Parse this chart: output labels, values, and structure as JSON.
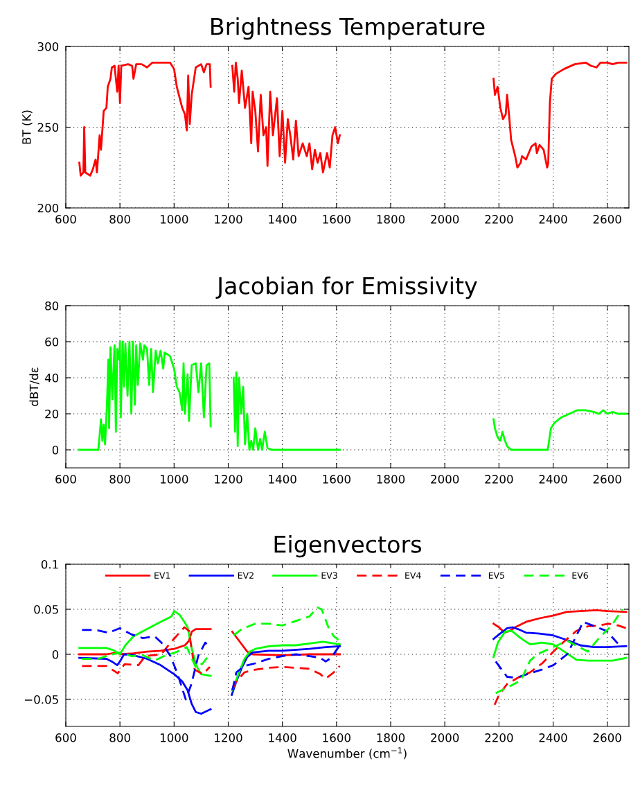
{
  "chart_data": [
    {
      "type": "line",
      "title": "Brightness Temperature",
      "ylabel": "BT (K)",
      "xlim": [
        600,
        2680
      ],
      "xticks": [
        600,
        800,
        1000,
        1200,
        1400,
        1600,
        1800,
        2000,
        2200,
        2400,
        2600
      ],
      "ylim": [
        200,
        300
      ],
      "yticks": [
        200,
        250,
        300
      ],
      "grid": true,
      "line_style": "solid",
      "series": [
        {
          "color": "#ff0000",
          "x": [
            650,
            655,
            665,
            668,
            672,
            690,
            700,
            710,
            715,
            725,
            730,
            740,
            750,
            755,
            765,
            770,
            780,
            790,
            795,
            800,
            805,
            830,
            845,
            850,
            860,
            880,
            900,
            920,
            960,
            985,
            1000,
            1010,
            1030,
            1040,
            1047,
            1052,
            1058,
            1065,
            1080,
            1100,
            1110,
            1120,
            1132,
            1135,
            1175,
            1215,
            1222,
            1228,
            1235,
            1240,
            1250,
            1262,
            1275,
            1285,
            1290,
            1300,
            1310,
            1320,
            1330,
            1340,
            1345,
            1355,
            1365,
            1380,
            1390,
            1400,
            1410,
            1420,
            1430,
            1440,
            1450,
            1460,
            1475,
            1490,
            1500,
            1510,
            1520,
            1530,
            1540,
            1550,
            1565,
            1575,
            1585,
            1595,
            1605,
            1612,
            1900,
            2180,
            2185,
            2195,
            2205,
            2215,
            2225,
            2230,
            2237,
            2245,
            2260,
            2268,
            2280,
            2285,
            2300,
            2320,
            2335,
            2340,
            2350,
            2365,
            2378,
            2382,
            2388,
            2395,
            2410,
            2440,
            2480,
            2520,
            2540,
            2560,
            2575,
            2600,
            2620,
            2640,
            2670
          ],
          "values": [
            228,
            220,
            222,
            250,
            222,
            220,
            224,
            230,
            222,
            245,
            236,
            260,
            262,
            275,
            280,
            287,
            288,
            272,
            288,
            265,
            288,
            289,
            288,
            280,
            289,
            289,
            287,
            290,
            290,
            290,
            286,
            275,
            262,
            258,
            248,
            282,
            252,
            270,
            287,
            289,
            284,
            289,
            289,
            275,
            null,
            288,
            272,
            290,
            280,
            265,
            285,
            262,
            275,
            240,
            272,
            260,
            235,
            270,
            245,
            250,
            226,
            272,
            245,
            268,
            232,
            260,
            228,
            255,
            244,
            230,
            254,
            232,
            240,
            232,
            240,
            224,
            236,
            228,
            234,
            222,
            234,
            225,
            245,
            250,
            240,
            245,
            null,
            280,
            270,
            275,
            262,
            255,
            258,
            270,
            258,
            242,
            232,
            225,
            228,
            232,
            230,
            238,
            240,
            234,
            239,
            236,
            225,
            228,
            265,
            280,
            283,
            286,
            289,
            290,
            288,
            287,
            290,
            290,
            289,
            290,
            290
          ]
        }
      ]
    },
    {
      "type": "line",
      "title": "Jacobian for Emissivity",
      "ylabel": "dBT/dε",
      "xlim": [
        600,
        2680
      ],
      "xticks": [
        600,
        800,
        1000,
        1200,
        1400,
        1600,
        1800,
        2000,
        2200,
        2400,
        2600
      ],
      "ylim": [
        -10,
        80
      ],
      "yticks": [
        0,
        20,
        40,
        60,
        80
      ],
      "grid": true,
      "line_style": "solid",
      "series": [
        {
          "color": "#00ff00",
          "x": [
            650,
            700,
            720,
            725,
            730,
            735,
            740,
            745,
            752,
            757,
            760,
            765,
            772,
            780,
            785,
            790,
            797,
            800,
            803,
            810,
            815,
            820,
            828,
            835,
            842,
            848,
            855,
            860,
            866,
            875,
            885,
            890,
            900,
            908,
            915,
            922,
            932,
            940,
            950,
            960,
            965,
            985,
            1000,
            1010,
            1020,
            1030,
            1035,
            1040,
            1050,
            1055,
            1065,
            1080,
            1090,
            1100,
            1110,
            1120,
            1130,
            1135,
            1175,
            1220,
            1225,
            1230,
            1235,
            1240,
            1248,
            1255,
            1262,
            1270,
            1278,
            1285,
            1292,
            1300,
            1310,
            1318,
            1325,
            1335,
            1345,
            1360,
            1400,
            1500,
            1612,
            1900,
            2180,
            2185,
            2195,
            2205,
            2213,
            2220,
            2230,
            2245,
            2270,
            2300,
            2340,
            2380,
            2385,
            2392,
            2405,
            2430,
            2460,
            2490,
            2520,
            2550,
            2570,
            2585,
            2600,
            2620,
            2640,
            2660,
            2670
          ],
          "values": [
            0,
            0,
            0,
            8,
            17,
            5,
            14,
            3,
            25,
            50,
            12,
            57,
            28,
            58,
            10,
            56,
            50,
            60,
            18,
            60,
            35,
            59,
            30,
            60,
            20,
            60,
            25,
            58,
            36,
            59,
            50,
            58,
            56,
            36,
            56,
            32,
            55,
            48,
            55,
            45,
            54,
            52,
            45,
            35,
            32,
            22,
            48,
            20,
            42,
            16,
            47,
            48,
            32,
            48,
            18,
            47,
            48,
            13,
            null,
            40,
            10,
            43,
            2,
            40,
            20,
            35,
            3,
            20,
            0,
            5,
            0,
            12,
            0,
            6,
            0,
            10,
            1,
            0,
            0,
            0,
            0,
            null,
            17,
            12,
            7,
            5,
            10,
            6,
            2,
            0,
            0,
            0,
            0,
            0,
            5,
            12,
            15,
            18,
            20,
            22,
            22,
            21,
            20,
            22,
            20,
            21,
            20,
            20,
            20
          ]
        }
      ]
    },
    {
      "type": "line",
      "title": "Eigenvectors",
      "xlabel": "Wavenumber (cm$^{−1}$)",
      "xlim": [
        600,
        2680
      ],
      "xticks": [
        600,
        800,
        1000,
        1200,
        1400,
        1600,
        1800,
        2000,
        2200,
        2400,
        2600
      ],
      "ylim": [
        -0.08,
        0.1
      ],
      "yticks": [
        {
          "value": -0.05,
          "label": "−0.05"
        },
        0,
        0.05,
        0.1
      ],
      "grid": true,
      "legend": "top",
      "series": [
        {
          "name": "EV1",
          "color": "#ff0000",
          "line_style": "solid",
          "x": [
            650,
            750,
            790,
            800,
            850,
            900,
            950,
            1000,
            1040,
            1055,
            1065,
            1080,
            1135,
            1175,
            1215,
            1240,
            1270,
            1290,
            1400,
            1500,
            1612,
            1900,
            2180,
            2200,
            2220,
            2240,
            2260,
            2300,
            2350,
            2400,
            2450,
            2500,
            2560,
            2600,
            2670
          ],
          "values": [
            0,
            0,
            0.002,
            0,
            0.001,
            0.003,
            0.004,
            0.006,
            0.01,
            0.015,
            0.025,
            0.028,
            0.028,
            null,
            0.025,
            0.015,
            0.003,
            0,
            -0.001,
            0,
            0,
            null,
            0.034,
            0.03,
            0.024,
            0.026,
            0.03,
            0.036,
            0.04,
            0.043,
            0.047,
            0.048,
            0.049,
            0.048,
            0.047
          ]
        },
        {
          "name": "EV2",
          "color": "#0000ff",
          "line_style": "solid",
          "x": [
            650,
            750,
            770,
            790,
            800,
            815,
            850,
            900,
            950,
            1000,
            1030,
            1050,
            1065,
            1080,
            1100,
            1120,
            1135,
            1175,
            1213,
            1230,
            1250,
            1270,
            1290,
            1350,
            1400,
            1500,
            1560,
            1612,
            1900,
            2180,
            2200,
            2230,
            2250,
            2270,
            2300,
            2350,
            2400,
            2450,
            2500,
            2550,
            2600,
            2670
          ],
          "values": [
            -0.004,
            -0.005,
            -0.008,
            -0.012,
            -0.008,
            0,
            -0.001,
            -0.005,
            -0.012,
            -0.022,
            -0.03,
            -0.04,
            -0.055,
            -0.064,
            -0.066,
            -0.063,
            -0.061,
            null,
            -0.045,
            -0.03,
            -0.015,
            -0.003,
            0.002,
            0.004,
            0.004,
            0.006,
            0.008,
            0.009,
            null,
            0.017,
            0.022,
            0.029,
            0.03,
            0.028,
            0.024,
            0.023,
            0.021,
            0.016,
            0.01,
            0.008,
            0.008,
            0.009
          ]
        },
        {
          "name": "EV3",
          "color": "#00ff00",
          "line_style": "solid",
          "x": [
            650,
            750,
            780,
            800,
            820,
            850,
            900,
            950,
            990,
            1000,
            1020,
            1040,
            1050,
            1064,
            1081,
            1100,
            1135,
            1175,
            1215,
            1240,
            1260,
            1280,
            1300,
            1350,
            1400,
            1450,
            1500,
            1550,
            1612,
            1900,
            2180,
            2196,
            2222,
            2247,
            2280,
            2315,
            2358,
            2400,
            2426,
            2486,
            2530,
            2572,
            2620,
            2670
          ],
          "values": [
            0.007,
            0.007,
            0.004,
            0,
            0.01,
            0.02,
            0.028,
            0.036,
            0.042,
            0.048,
            0.044,
            0.035,
            0.03,
            0.008,
            -0.012,
            -0.022,
            -0.024,
            null,
            -0.04,
            -0.02,
            -0.005,
            0.003,
            0.006,
            0.009,
            0.01,
            0.01,
            0.012,
            0.014,
            0.011,
            null,
            -0.003,
            0.013,
            0.025,
            0.026,
            0.018,
            0.011,
            0.013,
            0.011,
            0.006,
            -0.006,
            -0.007,
            -0.007,
            -0.007,
            -0.004
          ]
        },
        {
          "name": "EV4",
          "color": "#ff0000",
          "line_style": "dashed",
          "x": [
            660,
            750,
            792,
            817,
            868,
            894,
            953,
            987,
            1038,
            1055,
            1076,
            1106,
            1132,
            1175,
            1215,
            1230,
            1260,
            1300,
            1350,
            1400,
            1450,
            1500,
            1540,
            1560,
            1590,
            1612,
            1900,
            2184,
            2200,
            2230,
            2270,
            2315,
            2360,
            2401,
            2440,
            2486,
            2528,
            2570,
            2605,
            2640,
            2670
          ],
          "values": [
            -0.013,
            -0.013,
            -0.021,
            -0.011,
            -0.012,
            -0.002,
            0,
            0.013,
            0.03,
            0.026,
            -0.017,
            -0.022,
            -0.014,
            null,
            -0.039,
            -0.03,
            -0.02,
            -0.017,
            -0.015,
            -0.014,
            -0.015,
            -0.016,
            -0.022,
            -0.027,
            -0.02,
            -0.013,
            null,
            -0.056,
            -0.045,
            -0.033,
            -0.026,
            -0.02,
            -0.01,
            0.003,
            0.014,
            0.026,
            0.031,
            0.032,
            0.034,
            0.032,
            0.029
          ]
        },
        {
          "name": "EV5",
          "color": "#0000ff",
          "line_style": "dashed",
          "x": [
            660,
            710,
            758,
            800,
            843,
            885,
            928,
            953,
            987,
            1013,
            1043,
            1064,
            1089,
            1115,
            1132,
            1175,
            1215,
            1230,
            1260,
            1300,
            1350,
            1400,
            1450,
            1500,
            1540,
            1560,
            1580,
            1612,
            1900,
            2188,
            2230,
            2264,
            2315,
            2358,
            2401,
            2452,
            2511,
            2537,
            2597,
            2639
          ],
          "values": [
            0.027,
            0.027,
            0.024,
            0.029,
            0.022,
            0.018,
            0.02,
            0.013,
            -0.002,
            -0.022,
            -0.05,
            -0.033,
            -0.002,
            0.013,
            0.008,
            null,
            -0.04,
            -0.02,
            -0.013,
            -0.01,
            -0.005,
            -0.002,
            0,
            -0.002,
            -0.004,
            -0.008,
            -0.004,
            0.01,
            null,
            -0.008,
            -0.025,
            -0.026,
            -0.021,
            -0.017,
            -0.012,
            0,
            0.036,
            0.033,
            0.026,
            0.012
          ]
        },
        {
          "name": "EV6",
          "color": "#00ff00",
          "line_style": "dashed",
          "x": [
            660,
            720,
            758,
            800,
            843,
            885,
            928,
            970,
            1004,
            1047,
            1081,
            1106,
            1132,
            1175,
            1220,
            1250,
            1300,
            1350,
            1400,
            1450,
            1500,
            1530,
            1545,
            1570,
            1590,
            1612,
            1900,
            2188,
            2230,
            2281,
            2315,
            2341,
            2401,
            2452,
            2528,
            2572,
            2614,
            2656
          ],
          "values": [
            -0.005,
            -0.005,
            -0.001,
            0.002,
            -0.002,
            -0.001,
            -0.007,
            -0.001,
            0.002,
            0.008,
            -0.015,
            -0.01,
            0,
            null,
            0.021,
            0.028,
            0.034,
            0.034,
            0.032,
            0.037,
            0.042,
            0.052,
            0.05,
            0.03,
            0.02,
            0.015,
            null,
            -0.043,
            -0.037,
            -0.029,
            -0.007,
            0,
            0.008,
            0.015,
            0.003,
            0.019,
            0.031,
            0.05
          ]
        }
      ]
    }
  ]
}
